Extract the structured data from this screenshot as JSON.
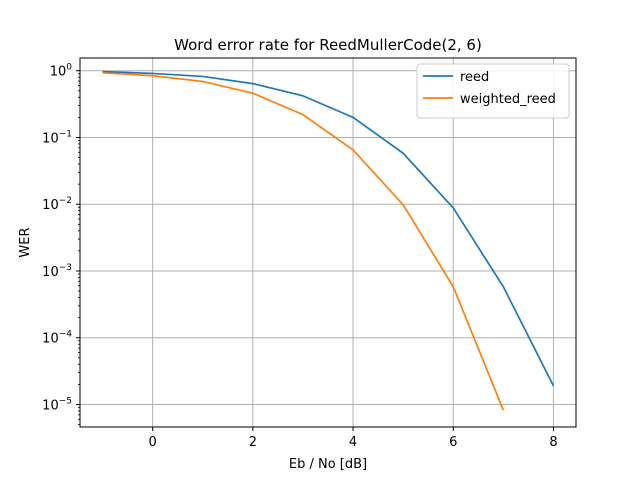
{
  "chart_data": {
    "type": "line",
    "title": "Word error rate for ReedMullerCode(2, 6)",
    "xlabel": "Eb / No [dB]",
    "ylabel": "WER",
    "yscale": "log",
    "xlim": [
      -1.45,
      8.45
    ],
    "ylim": [
      4.6e-06,
      1.55
    ],
    "grid": true,
    "legend_position": "top-right",
    "x_ticks": [
      {
        "value": 0,
        "label": "0"
      },
      {
        "value": 2,
        "label": "2"
      },
      {
        "value": 4,
        "label": "4"
      },
      {
        "value": 6,
        "label": "6"
      },
      {
        "value": 8,
        "label": "8"
      }
    ],
    "y_ticks": [
      {
        "value": 1,
        "base": "10",
        "exp": "0"
      },
      {
        "value": 0.1,
        "base": "10",
        "exp": "−1"
      },
      {
        "value": 0.01,
        "base": "10",
        "exp": "−2"
      },
      {
        "value": 0.001,
        "base": "10",
        "exp": "−3"
      },
      {
        "value": 0.0001,
        "base": "10",
        "exp": "−4"
      },
      {
        "value": 1e-05,
        "base": "10",
        "exp": "−5"
      }
    ],
    "series": [
      {
        "name": "reed",
        "color": "#1f77b4",
        "x": [
          -1,
          0,
          1,
          2,
          3,
          4,
          5,
          6,
          7,
          8
        ],
        "y": [
          0.97,
          0.91,
          0.82,
          0.64,
          0.42,
          0.2,
          0.058,
          0.0088,
          0.00058,
          1.9e-05
        ]
      },
      {
        "name": "weighted_reed",
        "color": "#ff7f0e",
        "x": [
          -1,
          0,
          1,
          2,
          3,
          4,
          5,
          6,
          7
        ],
        "y": [
          0.93,
          0.84,
          0.69,
          0.46,
          0.22,
          0.065,
          0.0098,
          0.00058,
          8.2e-06
        ]
      }
    ]
  }
}
